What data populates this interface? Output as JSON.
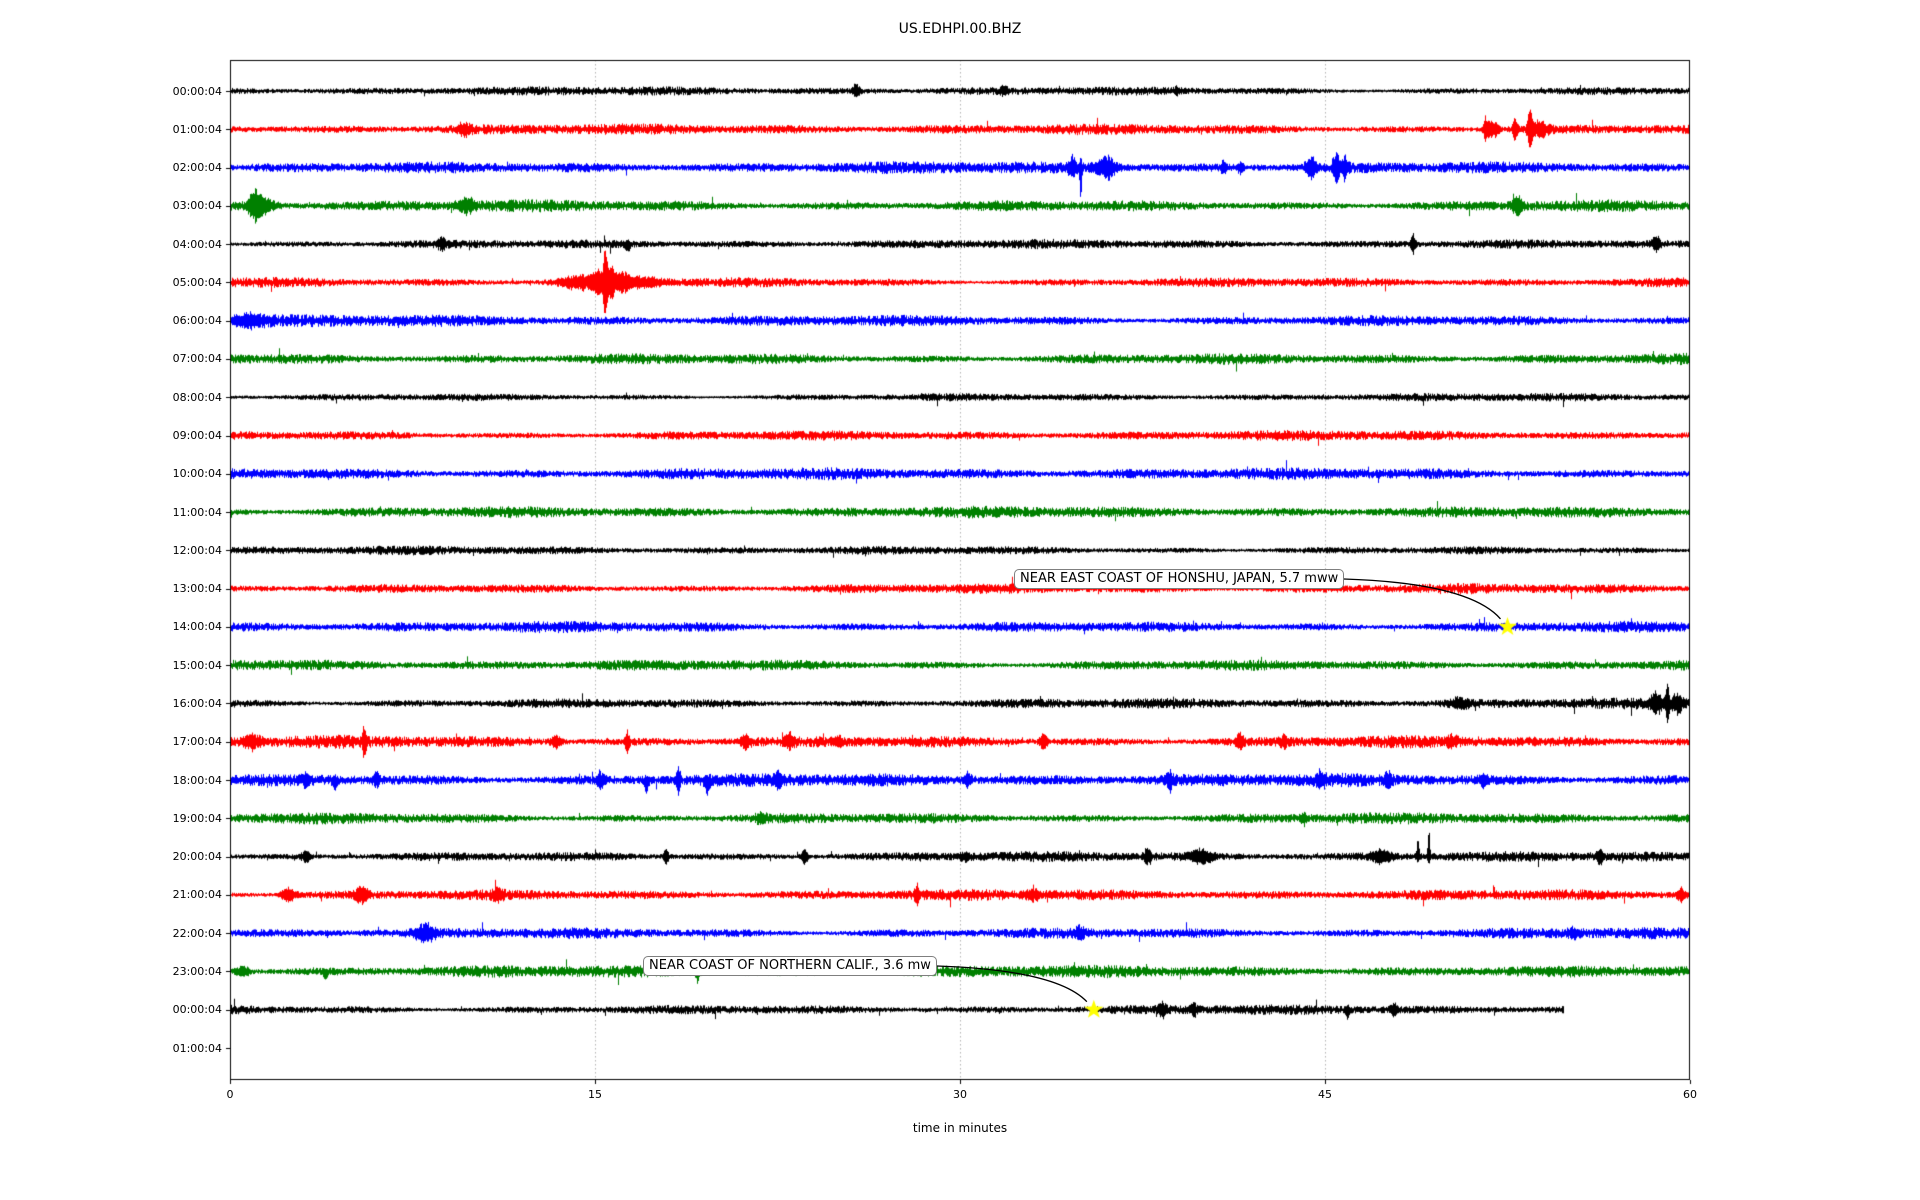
{
  "chart_data": {
    "type": "line",
    "subtype": "seismogram-dayplot",
    "title": "US.EDHPI.00.BHZ",
    "xlabel": "time in minutes",
    "x_range": [
      0,
      60
    ],
    "x_ticks": [
      0,
      15,
      30,
      45,
      60
    ],
    "grid_minutes": [
      15,
      30,
      45
    ],
    "grid_color": "#b3b3b3",
    "marker_shape": "star",
    "marker_color": "#ffff00",
    "rows": [
      {
        "label": "00:00:04",
        "color": "#000000",
        "amp": 2.8,
        "duration_min": 60,
        "bursts": [
          [
            25.7,
            6,
            0.12
          ],
          [
            31.8,
            4,
            0.1
          ],
          [
            38.9,
            3,
            0.1
          ]
        ]
      },
      {
        "label": "01:00:04",
        "color": "#ff0000",
        "amp": 3.4,
        "duration_min": 60,
        "bursts": [
          [
            9.6,
            5,
            0.2
          ],
          [
            51.6,
            12,
            0.08
          ],
          [
            51.9,
            8,
            0.15
          ],
          [
            52.8,
            11,
            0.07
          ],
          [
            53.4,
            16,
            0.08
          ],
          [
            53.8,
            7,
            0.25
          ]
        ]
      },
      {
        "label": "02:00:04",
        "color": "#0000ff",
        "amp": 3.8,
        "duration_min": 60,
        "bursts": [
          [
            34.6,
            8,
            0.12
          ],
          [
            34.95,
            26,
            0.05,
            -1
          ],
          [
            36.0,
            11,
            0.3
          ],
          [
            40.8,
            5,
            0.08
          ],
          [
            41.5,
            5,
            0.08
          ],
          [
            44.4,
            11,
            0.15
          ],
          [
            45.45,
            16,
            0.1
          ],
          [
            45.8,
            11,
            0.1
          ]
        ]
      },
      {
        "label": "03:00:04",
        "color": "#008000",
        "amp": 4.0,
        "duration_min": 60,
        "bursts": [
          [
            1.0,
            12,
            0.18
          ],
          [
            1.4,
            6,
            0.3
          ],
          [
            9.7,
            7,
            0.25
          ],
          [
            52.9,
            8,
            0.15
          ]
        ]
      },
      {
        "label": "04:00:04",
        "color": "#000000",
        "amp": 2.9,
        "duration_min": 60,
        "bursts": [
          [
            8.7,
            5,
            0.12
          ],
          [
            16.3,
            6,
            0.1,
            -1
          ],
          [
            48.6,
            9,
            0.07
          ],
          [
            58.6,
            7,
            0.1
          ]
        ]
      },
      {
        "label": "05:00:04",
        "color": "#ff0000",
        "amp": 3.4,
        "duration_min": 60,
        "bursts": [
          [
            14.3,
            6,
            0.5
          ],
          [
            15.1,
            10,
            0.15
          ],
          [
            15.4,
            36,
            0.07
          ],
          [
            15.65,
            14,
            0.12
          ],
          [
            16.1,
            7,
            0.3
          ],
          [
            17.0,
            4,
            0.6
          ]
        ]
      },
      {
        "label": "06:00:04",
        "color": "#0000ff",
        "amp": 3.8,
        "duration_min": 60,
        "bursts": [
          [
            0.8,
            5,
            0.5
          ]
        ]
      },
      {
        "label": "07:00:04",
        "color": "#008000",
        "amp": 3.8,
        "duration_min": 60,
        "bursts": []
      },
      {
        "label": "08:00:04",
        "color": "#000000",
        "amp": 2.6,
        "duration_min": 60,
        "bursts": []
      },
      {
        "label": "09:00:04",
        "color": "#ff0000",
        "amp": 3.2,
        "duration_min": 60,
        "bursts": []
      },
      {
        "label": "10:00:04",
        "color": "#0000ff",
        "amp": 3.8,
        "duration_min": 60,
        "bursts": []
      },
      {
        "label": "11:00:04",
        "color": "#008000",
        "amp": 3.6,
        "duration_min": 60,
        "bursts": []
      },
      {
        "label": "12:00:04",
        "color": "#000000",
        "amp": 2.8,
        "duration_min": 60,
        "bursts": []
      },
      {
        "label": "13:00:04",
        "color": "#ff0000",
        "amp": 3.2,
        "duration_min": 60,
        "bursts": []
      },
      {
        "label": "14:00:04",
        "color": "#0000ff",
        "amp": 3.8,
        "duration_min": 60,
        "bursts": []
      },
      {
        "label": "15:00:04",
        "color": "#008000",
        "amp": 3.8,
        "duration_min": 60,
        "bursts": []
      },
      {
        "label": "16:00:04",
        "color": "#000000",
        "amp": 3.4,
        "duration_min": 60,
        "bursts": [
          [
            50.5,
            4,
            0.3
          ],
          [
            58.6,
            10,
            0.15
          ],
          [
            59.05,
            30,
            0.05
          ],
          [
            59.45,
            9,
            0.15
          ]
        ]
      },
      {
        "label": "17:00:04",
        "color": "#ff0000",
        "amp": 4.2,
        "duration_min": 60,
        "bursts": [
          [
            0.9,
            6,
            0.25
          ],
          [
            5.5,
            13,
            0.06
          ],
          [
            13.4,
            6,
            0.15
          ],
          [
            16.3,
            12,
            0.07
          ],
          [
            21.2,
            6,
            0.15
          ],
          [
            23.0,
            6,
            0.12
          ],
          [
            25.0,
            5,
            0.1
          ],
          [
            33.4,
            8,
            0.1
          ],
          [
            41.5,
            7,
            0.1
          ],
          [
            43.3,
            6,
            0.1
          ],
          [
            50.2,
            5,
            0.15
          ]
        ]
      },
      {
        "label": "18:00:04",
        "color": "#0000ff",
        "amp": 4.2,
        "duration_min": 60,
        "bursts": [
          [
            3.1,
            7,
            0.1
          ],
          [
            4.3,
            8,
            0.08,
            -1
          ],
          [
            6.0,
            6,
            0.1
          ],
          [
            15.2,
            7,
            0.12
          ],
          [
            17.1,
            14,
            0.07,
            -1
          ],
          [
            18.4,
            12,
            0.07
          ],
          [
            19.6,
            10,
            0.08,
            -1
          ],
          [
            22.5,
            8,
            0.1
          ],
          [
            30.3,
            6,
            0.12
          ],
          [
            38.6,
            9,
            0.1
          ],
          [
            44.8,
            7,
            0.12
          ],
          [
            47.6,
            7,
            0.1
          ],
          [
            51.5,
            5,
            0.12
          ]
        ]
      },
      {
        "label": "19:00:04",
        "color": "#008000",
        "amp": 3.8,
        "duration_min": 60,
        "bursts": [
          [
            21.8,
            4,
            0.15
          ],
          [
            44.1,
            6,
            0.08
          ]
        ]
      },
      {
        "label": "20:00:04",
        "color": "#000000",
        "amp": 3.2,
        "duration_min": 60,
        "bursts": [
          [
            3.1,
            6,
            0.12
          ],
          [
            17.9,
            8,
            0.07
          ],
          [
            23.6,
            7,
            0.1
          ],
          [
            30.2,
            4,
            0.15
          ],
          [
            37.7,
            8,
            0.1
          ],
          [
            39.9,
            6,
            0.3
          ],
          [
            47.3,
            6,
            0.3
          ],
          [
            48.8,
            20,
            0.04,
            1
          ],
          [
            49.25,
            36,
            0.04,
            1
          ],
          [
            56.3,
            6,
            0.1
          ]
        ]
      },
      {
        "label": "21:00:04",
        "color": "#ff0000",
        "amp": 3.5,
        "duration_min": 60,
        "bursts": [
          [
            2.4,
            7,
            0.2
          ],
          [
            5.4,
            7,
            0.2
          ],
          [
            11.0,
            5,
            0.15
          ],
          [
            28.2,
            9,
            0.07
          ],
          [
            33.0,
            4,
            0.2
          ],
          [
            59.6,
            7,
            0.1
          ]
        ]
      },
      {
        "label": "22:00:04",
        "color": "#0000ff",
        "amp": 3.8,
        "duration_min": 60,
        "bursts": [
          [
            8.0,
            7,
            0.3
          ],
          [
            34.9,
            5,
            0.12
          ],
          [
            55.2,
            4,
            0.15
          ]
        ]
      },
      {
        "label": "23:00:04",
        "color": "#008000",
        "amp": 3.9,
        "duration_min": 60,
        "bursts": [
          [
            0.5,
            5,
            0.2
          ],
          [
            3.9,
            9,
            0.06,
            -1
          ],
          [
            19.2,
            10,
            0.06
          ]
        ]
      },
      {
        "label": "00:00:04",
        "color": "#000000",
        "amp": 3.3,
        "duration_min": 54.8,
        "bursts": [
          [
            38.3,
            6,
            0.12
          ],
          [
            39.6,
            5,
            0.1
          ],
          [
            45.9,
            9,
            0.06,
            -1
          ],
          [
            47.8,
            5,
            0.1
          ]
        ]
      },
      {
        "label": "01:00:04",
        "color": null,
        "amp": 0,
        "duration_min": 0,
        "bursts": []
      }
    ],
    "events": [
      {
        "label": "NEAR EAST COAST OF HONSHU, JAPAN, 5.7 mww",
        "row": 14,
        "minute": 52.5
      },
      {
        "label": "NEAR COAST OF NORTHERN CALIF., 3.6 mw",
        "row": 24,
        "minute": 35.5
      }
    ]
  }
}
